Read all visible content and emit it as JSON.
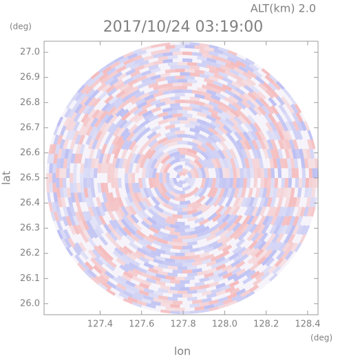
{
  "chart_data": {
    "type": "radar-ppi",
    "title": "2017/10/24 03:19:00",
    "altitude_label": "ALT(km) 2.0",
    "y_unit": "(deg)",
    "x_unit": "(deg)",
    "xlabel": "lon",
    "ylabel": "lat",
    "xlim": [
      127.13,
      128.45
    ],
    "ylim": [
      25.956,
      27.044
    ],
    "xticks": [
      127.4,
      127.6,
      127.8,
      {
        "value": 128.0,
        "label": "128.0"
      },
      128.2,
      128.4
    ],
    "yticks": [
      {
        "value": 26.0,
        "label": "26.0"
      },
      26.1,
      26.2,
      26.3,
      26.4,
      26.5,
      26.6,
      26.7,
      26.8,
      26.9,
      {
        "value": 27.0,
        "label": "27.0"
      }
    ]
  }
}
